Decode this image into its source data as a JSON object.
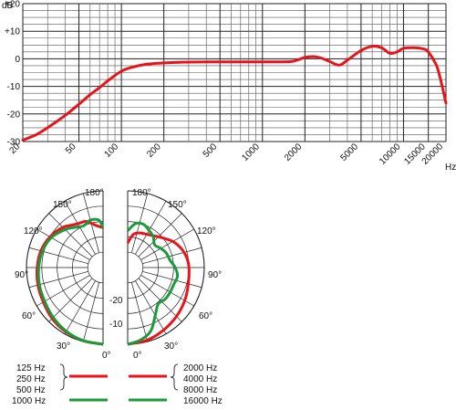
{
  "chart_data": [
    {
      "type": "line",
      "title": "",
      "xlabel": "Hz",
      "ylabel": "dB",
      "xscale": "log",
      "xlim": [
        20,
        20000
      ],
      "ylim": [
        -30,
        20
      ],
      "grid": true,
      "y_ticks": [
        "+20",
        "+10",
        "0",
        "-10",
        "-20",
        "-30"
      ],
      "x_ticks": [
        "20",
        "50",
        "100",
        "200",
        "500",
        "1000",
        "2000",
        "5000",
        "10000",
        "15000",
        "20000"
      ],
      "series": [
        {
          "color": "#e8141b",
          "x": [
            20,
            25,
            30,
            40,
            50,
            60,
            70,
            80,
            100,
            120,
            150,
            200,
            300,
            500,
            700,
            1000,
            1300,
            1600,
            1800,
            2000,
            2300,
            2600,
            3000,
            3500,
            4000,
            5000,
            6000,
            7000,
            8000,
            9000,
            10000,
            12000,
            14000,
            15000,
            17000,
            18000,
            19000,
            20000
          ],
          "y": [
            -29.5,
            -27.5,
            -25,
            -20.5,
            -16.5,
            -13,
            -10.5,
            -8,
            -4.5,
            -3,
            -2,
            -1.5,
            -1.2,
            -1.1,
            -1.1,
            -1.1,
            -1.1,
            -1,
            -0.3,
            0.5,
            0.8,
            0.3,
            -1,
            -2.3,
            -0.5,
            3,
            4.5,
            4,
            2,
            2.5,
            3.8,
            4,
            3.5,
            2.5,
            -2,
            -6,
            -11,
            -16
          ]
        }
      ]
    },
    {
      "type": "polar",
      "title": "",
      "angle_ticks": [
        "0°",
        "30°",
        "60°",
        "90°",
        "120°",
        "150°",
        "180°"
      ],
      "radial_ticks": [
        "-10",
        "-20"
      ],
      "rlim": [
        -25,
        0
      ],
      "left_half": {
        "series": [
          {
            "color": "#e8141b",
            "angle_deg": [
              0,
              15,
              30,
              45,
              60,
              75,
              90,
              105,
              120,
              135,
              145,
              150,
              160,
              170,
              180
            ],
            "db": [
              0,
              -0.3,
              -0.8,
              -1.5,
              -2.5,
              -3,
              -3.5,
              -4,
              -5,
              -6.5,
              -8,
              -8.5,
              -9,
              -11,
              -12
            ]
          },
          {
            "color": "#1a9a3a",
            "angle_deg": [
              0,
              15,
              30,
              45,
              60,
              75,
              90,
              105,
              120,
              135,
              145,
              155,
              165,
              175,
              180
            ],
            "db": [
              0,
              -0.3,
              -1,
              -2,
              -3,
              -3.5,
              -4,
              -4.5,
              -5.5,
              -7.5,
              -9,
              -10,
              -9,
              -9.5,
              -12
            ]
          }
        ]
      },
      "right_half": {
        "series": [
          {
            "color": "#e8141b",
            "angle_deg": [
              0,
              15,
              30,
              45,
              60,
              75,
              90,
              100,
              110,
              120,
              130,
              140,
              150,
              160,
              170,
              180
            ],
            "db": [
              0,
              -0.5,
              -1.5,
              -2.5,
              -3.5,
              -4.5,
              -5,
              -5.5,
              -6.5,
              -8,
              -10,
              -11.5,
              -12.5,
              -13,
              -14,
              -17
            ]
          },
          {
            "color": "#1a9a3a",
            "angle_deg": [
              0,
              10,
              20,
              30,
              40,
              50,
              60,
              70,
              80,
              90,
              100,
              110,
              120,
              130,
              140,
              150,
              160,
              170,
              180
            ],
            "db": [
              0,
              -1,
              -3,
              -7,
              -9.5,
              -9,
              -9,
              -9,
              -8.5,
              -9.5,
              -11,
              -11.5,
              -12.5,
              -13.5,
              -12,
              -11,
              -10,
              -10.5,
              -13
            ]
          }
        ]
      }
    }
  ],
  "polar_labels": {
    "left": {
      "a0": "0°",
      "a30": "30°",
      "a60": "60°",
      "a90": "90°",
      "a120": "120°",
      "a150": "150°",
      "a180": "180°"
    },
    "right": {
      "a0": "0°",
      "a30": "30°",
      "a60": "60°",
      "a90": "90°",
      "a120": "120°",
      "a150": "150°",
      "a180": "180°"
    },
    "r10": "-10",
    "r20": "-20"
  },
  "legend": {
    "left_labels": [
      "125 Hz",
      "250 Hz",
      "500 Hz",
      "1000 Hz"
    ],
    "right_labels": [
      "2000 Hz",
      "4000 Hz",
      "8000 Hz",
      "16000 Hz"
    ],
    "colors": {
      "red": "#e8141b",
      "green": "#1a9a3a"
    }
  }
}
